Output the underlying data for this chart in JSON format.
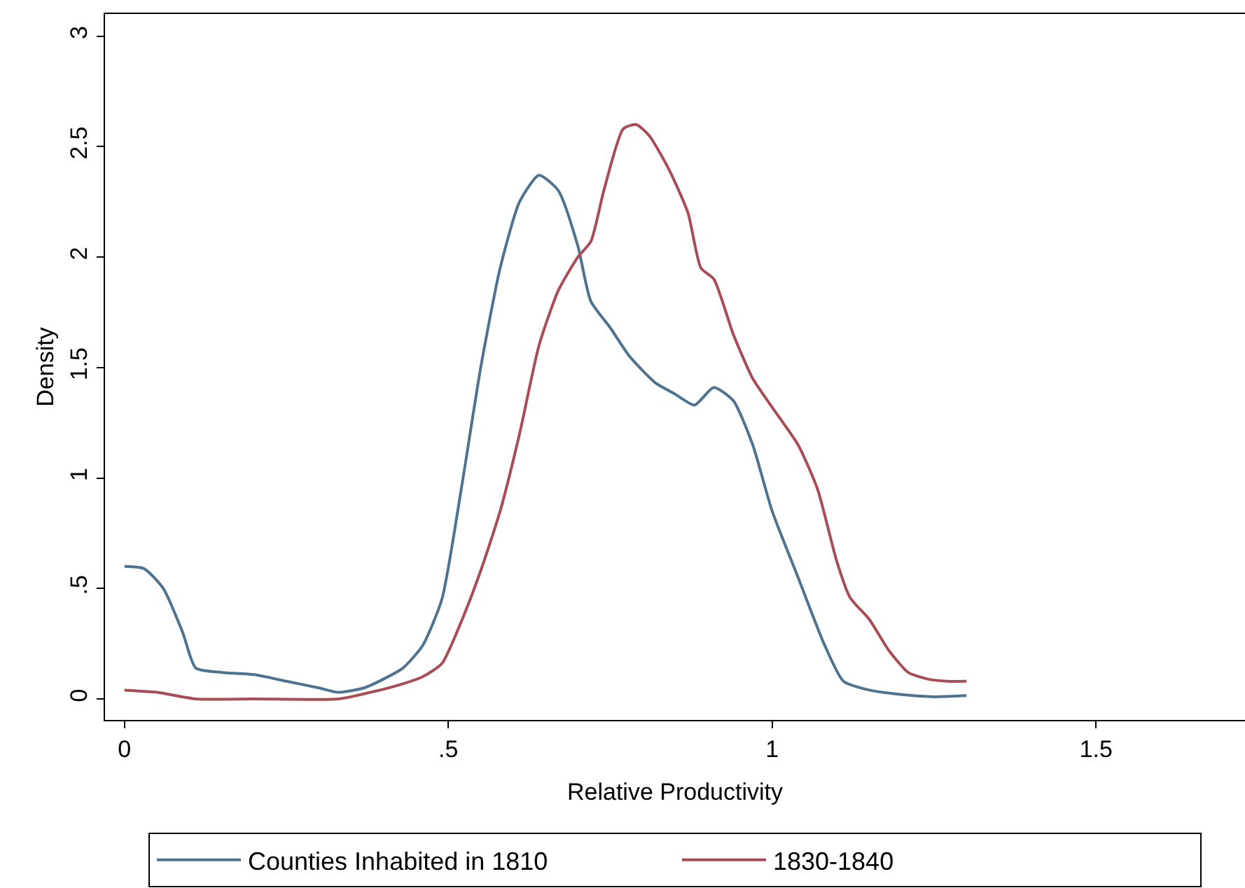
{
  "chart_data": {
    "type": "line",
    "xlabel": "Relative Productivity",
    "ylabel": "Density",
    "xlim": [
      -0.03,
      1.73
    ],
    "ylim": [
      -0.095,
      3.1
    ],
    "xticks": [
      0,
      {
        "value": 0.5,
        "label": ".5"
      },
      1,
      1.5
    ],
    "yticks": [
      0,
      {
        "value": 0.5,
        "label": ".5"
      },
      1,
      1.5,
      2,
      2.5,
      3
    ],
    "legend": "bottom",
    "marker": "none",
    "line_style": "solid",
    "series": [
      {
        "name": "Counties Inhabited in 1810",
        "color": "#4e7391",
        "x": [
          0,
          0.03,
          0.06,
          0.09,
          0.11,
          0.15,
          0.2,
          0.25,
          0.3,
          0.33,
          0.37,
          0.4,
          0.43,
          0.46,
          0.49,
          0.52,
          0.55,
          0.58,
          0.61,
          0.64,
          0.67,
          0.7,
          0.72,
          0.75,
          0.78,
          0.82,
          0.85,
          0.88,
          0.91,
          0.94,
          0.97,
          1.0,
          1.04,
          1.08,
          1.11,
          1.15,
          1.2,
          1.25,
          1.3
        ],
        "values": [
          0.6,
          0.59,
          0.5,
          0.3,
          0.14,
          0.12,
          0.11,
          0.08,
          0.05,
          0.03,
          0.05,
          0.09,
          0.14,
          0.24,
          0.45,
          0.95,
          1.5,
          1.95,
          2.25,
          2.37,
          2.3,
          2.05,
          1.8,
          1.68,
          1.55,
          1.43,
          1.38,
          1.33,
          1.41,
          1.35,
          1.15,
          0.85,
          0.55,
          0.25,
          0.08,
          0.04,
          0.02,
          0.01,
          0.015
        ]
      },
      {
        "name": "1830-1840",
        "color": "#a84c55",
        "x": [
          0,
          0.05,
          0.11,
          0.2,
          0.33,
          0.38,
          0.42,
          0.46,
          0.49,
          0.52,
          0.55,
          0.58,
          0.61,
          0.64,
          0.67,
          0.7,
          0.72,
          0.74,
          0.77,
          0.79,
          0.81,
          0.84,
          0.87,
          0.89,
          0.91,
          0.94,
          0.97,
          1.0,
          1.04,
          1.07,
          1.1,
          1.12,
          1.15,
          1.18,
          1.21,
          1.24,
          1.27,
          1.3
        ],
        "values": [
          0.04,
          0.03,
          0.0,
          0.0,
          0.0,
          0.03,
          0.06,
          0.1,
          0.16,
          0.35,
          0.58,
          0.85,
          1.2,
          1.6,
          1.85,
          2.0,
          2.07,
          2.3,
          2.58,
          2.6,
          2.55,
          2.4,
          2.2,
          1.95,
          1.9,
          1.65,
          1.45,
          1.32,
          1.15,
          0.95,
          0.62,
          0.46,
          0.36,
          0.22,
          0.12,
          0.09,
          0.08,
          0.08
        ]
      }
    ]
  }
}
